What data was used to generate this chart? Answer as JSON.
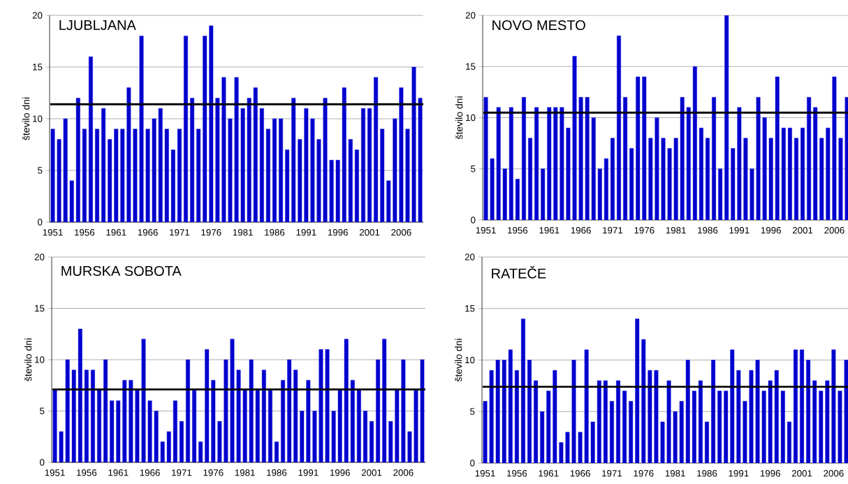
{
  "chart_data": [
    {
      "type": "bar",
      "title": "LJUBLJANA",
      "ylabel": "število dni",
      "categories": [
        "1951",
        null,
        null,
        null,
        null,
        "1956",
        null,
        null,
        null,
        null,
        "1961",
        null,
        null,
        null,
        null,
        "1966",
        null,
        null,
        null,
        null,
        "1971",
        null,
        null,
        null,
        null,
        "1976",
        null,
        null,
        null,
        null,
        "1981",
        null,
        null,
        null,
        null,
        "1986",
        null,
        null,
        null,
        null,
        "1991",
        null,
        null,
        null,
        null,
        "1996",
        null,
        null,
        null,
        null,
        "2001",
        null,
        null,
        null,
        null,
        "2006",
        null,
        null,
        null
      ],
      "values": [
        9,
        8,
        10,
        4,
        12,
        9,
        16,
        9,
        11,
        8,
        9,
        9,
        13,
        9,
        18,
        9,
        10,
        11,
        9,
        7,
        9,
        18,
        12,
        9,
        18,
        19,
        12,
        14,
        10,
        14,
        11,
        12,
        13,
        11,
        9,
        10,
        10,
        7,
        12,
        8,
        11,
        10,
        8,
        12,
        6,
        6,
        13,
        8,
        7,
        11,
        11,
        14,
        9,
        4,
        10,
        13,
        9,
        15,
        12
      ],
      "color": "#0000cc",
      "ylim": [
        0,
        20
      ],
      "yticks": [
        0,
        5,
        10,
        15,
        20
      ],
      "grid": "y",
      "ref_lines": [
        {
          "axis": "y",
          "value": 11.4,
          "color": "#000000"
        }
      ]
    },
    {
      "type": "bar",
      "title": "NOVO MESTO",
      "ylabel": "število dni",
      "categories": [
        "1951",
        null,
        null,
        null,
        null,
        "1956",
        null,
        null,
        null,
        null,
        "1961",
        null,
        null,
        null,
        null,
        "1966",
        null,
        null,
        null,
        null,
        "1971",
        null,
        null,
        null,
        null,
        "1976",
        null,
        null,
        null,
        null,
        "1981",
        null,
        null,
        null,
        null,
        "1986",
        null,
        null,
        null,
        null,
        "1991",
        null,
        null,
        null,
        null,
        "1996",
        null,
        null,
        null,
        null,
        "2001",
        null,
        null,
        null,
        null,
        "2006",
        null,
        null
      ],
      "values": [
        12,
        6,
        11,
        5,
        11,
        4,
        12,
        8,
        11,
        5,
        11,
        11,
        11,
        9,
        16,
        12,
        12,
        10,
        5,
        6,
        8,
        18,
        12,
        7,
        14,
        14,
        8,
        10,
        8,
        7,
        8,
        12,
        11,
        15,
        9,
        8,
        12,
        5,
        20,
        7,
        11,
        8,
        5,
        12,
        10,
        8,
        14,
        9,
        9,
        8,
        9,
        12,
        11,
        8,
        9,
        14,
        8,
        12
      ],
      "color": "#0000cc",
      "ylim": [
        0,
        20
      ],
      "yticks": [
        0,
        5,
        10,
        15,
        20
      ],
      "grid": "y",
      "ref_lines": [
        {
          "axis": "y",
          "value": 10.5,
          "color": "#000000"
        }
      ]
    },
    {
      "type": "bar",
      "title": "MURSKA SOBOTA",
      "ylabel": "število dni",
      "categories": [
        "1951",
        null,
        null,
        null,
        null,
        "1956",
        null,
        null,
        null,
        null,
        "1961",
        null,
        null,
        null,
        null,
        "1966",
        null,
        null,
        null,
        null,
        "1971",
        null,
        null,
        null,
        null,
        "1976",
        null,
        null,
        null,
        null,
        "1981",
        null,
        null,
        null,
        null,
        "1986",
        null,
        null,
        null,
        null,
        "1991",
        null,
        null,
        null,
        null,
        "1996",
        null,
        null,
        null,
        null,
        "2001",
        null,
        null,
        null,
        null,
        "2006",
        null,
        null,
        null
      ],
      "values": [
        7,
        3,
        10,
        9,
        13,
        9,
        9,
        7,
        10,
        6,
        6,
        8,
        8,
        7,
        12,
        6,
        5,
        2,
        3,
        6,
        4,
        10,
        7,
        2,
        11,
        8,
        4,
        10,
        12,
        9,
        7,
        10,
        7,
        9,
        7,
        2,
        8,
        10,
        9,
        5,
        8,
        5,
        11,
        11,
        5,
        7,
        12,
        8,
        7,
        5,
        4,
        10,
        12,
        4,
        7,
        10,
        3,
        7,
        10
      ],
      "color": "#0000cc",
      "ylim": [
        0,
        20
      ],
      "yticks": [
        0,
        5,
        10,
        15,
        20
      ],
      "grid": "y",
      "ref_lines": [
        {
          "axis": "y",
          "value": 7.1,
          "color": "#000000"
        }
      ]
    },
    {
      "type": "bar",
      "title": "RATEČE",
      "ylabel": "število dni",
      "categories": [
        "1951",
        null,
        null,
        null,
        null,
        "1956",
        null,
        null,
        null,
        null,
        "1961",
        null,
        null,
        null,
        null,
        "1966",
        null,
        null,
        null,
        null,
        "1971",
        null,
        null,
        null,
        null,
        "1976",
        null,
        null,
        null,
        null,
        "1981",
        null,
        null,
        null,
        null,
        "1986",
        null,
        null,
        null,
        null,
        "1991",
        null,
        null,
        null,
        null,
        "1996",
        null,
        null,
        null,
        null,
        "2001",
        null,
        null,
        null,
        null,
        "2006",
        null,
        null
      ],
      "values": [
        6,
        9,
        10,
        10,
        11,
        9,
        14,
        10,
        8,
        5,
        7,
        9,
        2,
        3,
        10,
        3,
        11,
        4,
        8,
        8,
        6,
        8,
        7,
        6,
        14,
        12,
        9,
        9,
        4,
        8,
        5,
        6,
        10,
        7,
        8,
        4,
        10,
        7,
        7,
        11,
        9,
        6,
        9,
        10,
        7,
        8,
        9,
        7,
        4,
        11,
        11,
        10,
        8,
        7,
        8,
        11,
        7,
        10
      ],
      "color": "#0000cc",
      "ylim": [
        0,
        20
      ],
      "yticks": [
        0,
        5,
        10,
        15,
        20
      ],
      "grid": "y",
      "ref_lines": [
        {
          "axis": "y",
          "value": 7.4,
          "color": "#000000"
        }
      ]
    }
  ]
}
